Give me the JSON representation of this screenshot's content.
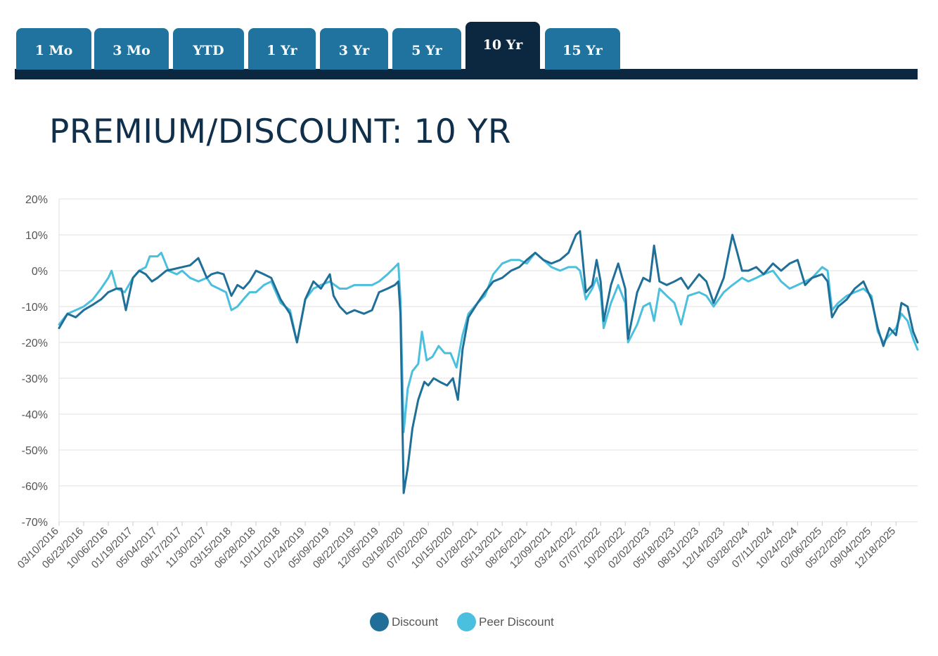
{
  "tabs": [
    {
      "label": "1 Mo",
      "active": false
    },
    {
      "label": "3 Mo",
      "active": false
    },
    {
      "label": "YTD",
      "active": false
    },
    {
      "label": "1 Yr",
      "active": false
    },
    {
      "label": "3 Yr",
      "active": false
    },
    {
      "label": "5 Yr",
      "active": false
    },
    {
      "label": "10 Yr",
      "active": true
    },
    {
      "label": "15 Yr",
      "active": false
    }
  ],
  "colors": {
    "tab": "#20739e",
    "tab_active": "#0c2840",
    "discount": "#1f6f98",
    "peer_discount": "#4bbfde",
    "grid": "#e2e2e2",
    "axis_text": "#555555"
  },
  "chart_data": {
    "type": "line",
    "title": "PREMIUM/DISCOUNT: 10 YR",
    "ylim": [
      -70,
      20
    ],
    "y_ticks": [
      "20%",
      "10%",
      "0%",
      "-10%",
      "-20%",
      "-30%",
      "-40%",
      "-50%",
      "-60%",
      "-70%"
    ],
    "x_ticks": [
      "03/10/2016",
      "06/23/2016",
      "10/06/2016",
      "01/19/2017",
      "05/04/2017",
      "08/17/2017",
      "11/30/2017",
      "03/15/2018",
      "06/28/2018",
      "10/11/2018",
      "01/24/2019",
      "05/09/2019",
      "08/22/2019",
      "12/05/2019",
      "03/19/2020",
      "07/02/2020",
      "10/15/2020",
      "01/28/2021",
      "05/13/2021",
      "08/26/2021",
      "12/09/2021",
      "03/24/2022",
      "07/07/2022",
      "10/20/2022",
      "02/02/2023",
      "05/18/2023",
      "08/31/2023",
      "12/14/2023",
      "03/28/2024",
      "07/11/2024",
      "10/24/2024",
      "02/06/2025",
      "05/22/2025",
      "09/04/2025",
      "12/18/2025"
    ],
    "x_end": "03/20/2026",
    "legend_position": "bottom-center",
    "grid": true,
    "series": [
      {
        "name": "Discount",
        "color": "#1f6f98",
        "points": [
          [
            "03/10/2016",
            -16
          ],
          [
            "04/15/2016",
            -12
          ],
          [
            "05/20/2016",
            -13
          ],
          [
            "06/23/2016",
            -11
          ],
          [
            "08/01/2016",
            -9.5
          ],
          [
            "09/05/2016",
            -8
          ],
          [
            "10/06/2016",
            -6
          ],
          [
            "11/10/2016",
            -5
          ],
          [
            "12/01/2016",
            -5
          ],
          [
            "12/20/2016",
            -11
          ],
          [
            "01/19/2017",
            -2
          ],
          [
            "02/15/2017",
            0
          ],
          [
            "03/15/2017",
            -1
          ],
          [
            "04/10/2017",
            -3
          ],
          [
            "05/04/2017",
            -2
          ],
          [
            "06/10/2017",
            0
          ],
          [
            "07/15/2017",
            0.5
          ],
          [
            "08/17/2017",
            1
          ],
          [
            "09/20/2017",
            1.5
          ],
          [
            "10/25/2017",
            3.5
          ],
          [
            "11/30/2017",
            -2
          ],
          [
            "12/20/2017",
            -1
          ],
          [
            "01/15/2018",
            -0.5
          ],
          [
            "02/10/2018",
            -1
          ],
          [
            "03/15/2018",
            -7
          ],
          [
            "04/10/2018",
            -4
          ],
          [
            "05/05/2018",
            -5
          ],
          [
            "06/01/2018",
            -3
          ],
          [
            "06/28/2018",
            0
          ],
          [
            "08/01/2018",
            -1
          ],
          [
            "09/01/2018",
            -2
          ],
          [
            "10/11/2018",
            -8
          ],
          [
            "11/20/2018",
            -12
          ],
          [
            "12/20/2018",
            -20
          ],
          [
            "01/24/2019",
            -8
          ],
          [
            "02/28/2019",
            -3
          ],
          [
            "04/01/2019",
            -5
          ],
          [
            "05/09/2019",
            -1
          ],
          [
            "05/25/2019",
            -7
          ],
          [
            "06/20/2019",
            -10
          ],
          [
            "07/20/2019",
            -12
          ],
          [
            "08/22/2019",
            -11
          ],
          [
            "10/01/2019",
            -12
          ],
          [
            "11/05/2019",
            -11
          ],
          [
            "12/05/2019",
            -6
          ],
          [
            "01/10/2020",
            -5
          ],
          [
            "02/10/2020",
            -4
          ],
          [
            "02/25/2020",
            -3
          ],
          [
            "03/05/2020",
            -12
          ],
          [
            "03/19/2020",
            -62
          ],
          [
            "04/05/2020",
            -55
          ],
          [
            "04/25/2020",
            -44
          ],
          [
            "05/20/2020",
            -36
          ],
          [
            "06/15/2020",
            -31
          ],
          [
            "07/02/2020",
            -32
          ],
          [
            "07/25/2020",
            -30
          ],
          [
            "08/20/2020",
            -31
          ],
          [
            "09/20/2020",
            -32
          ],
          [
            "10/15/2020",
            -30
          ],
          [
            "11/05/2020",
            -36
          ],
          [
            "11/25/2020",
            -22
          ],
          [
            "12/20/2020",
            -13
          ],
          [
            "01/28/2021",
            -9
          ],
          [
            "02/28/2021",
            -6
          ],
          [
            "04/05/2021",
            -3
          ],
          [
            "05/13/2021",
            -2
          ],
          [
            "06/20/2021",
            0
          ],
          [
            "07/25/2021",
            1
          ],
          [
            "08/26/2021",
            3
          ],
          [
            "10/01/2021",
            5
          ],
          [
            "11/05/2021",
            3
          ],
          [
            "12/09/2021",
            2
          ],
          [
            "01/15/2022",
            3
          ],
          [
            "02/20/2022",
            5
          ],
          [
            "03/24/2022",
            10
          ],
          [
            "04/10/2022",
            11
          ],
          [
            "05/05/2022",
            -6
          ],
          [
            "06/01/2022",
            -4
          ],
          [
            "06/20/2022",
            3
          ],
          [
            "07/07/2022",
            -3
          ],
          [
            "07/20/2022",
            -14
          ],
          [
            "08/20/2022",
            -4
          ],
          [
            "09/20/2022",
            2
          ],
          [
            "10/20/2022",
            -5
          ],
          [
            "11/01/2022",
            -19
          ],
          [
            "12/10/2022",
            -6
          ],
          [
            "01/05/2023",
            -2
          ],
          [
            "02/02/2023",
            -3
          ],
          [
            "02/20/2023",
            7
          ],
          [
            "03/15/2023",
            -3
          ],
          [
            "04/15/2023",
            -4
          ],
          [
            "05/18/2023",
            -3
          ],
          [
            "06/15/2023",
            -2
          ],
          [
            "07/15/2023",
            -5
          ],
          [
            "08/31/2023",
            -1
          ],
          [
            "10/01/2023",
            -3
          ],
          [
            "11/01/2023",
            -9
          ],
          [
            "12/14/2023",
            -2
          ],
          [
            "01/20/2024",
            10
          ],
          [
            "02/10/2024",
            5
          ],
          [
            "03/01/2024",
            0
          ],
          [
            "03/28/2024",
            0
          ],
          [
            "05/01/2024",
            1
          ],
          [
            "06/01/2024",
            -1
          ],
          [
            "07/11/2024",
            2
          ],
          [
            "08/15/2024",
            0
          ],
          [
            "09/20/2024",
            2
          ],
          [
            "10/24/2024",
            3
          ],
          [
            "11/25/2024",
            -4
          ],
          [
            "12/25/2024",
            -2
          ],
          [
            "02/06/2025",
            -1
          ],
          [
            "03/01/2025",
            -3
          ],
          [
            "03/20/2025",
            -13
          ],
          [
            "04/15/2025",
            -10
          ],
          [
            "05/22/2025",
            -8
          ],
          [
            "06/25/2025",
            -5
          ],
          [
            "08/01/2025",
            -3
          ],
          [
            "09/04/2025",
            -8
          ],
          [
            "10/01/2025",
            -16
          ],
          [
            "10/25/2025",
            -21
          ],
          [
            "11/20/2025",
            -16
          ],
          [
            "12/18/2025",
            -18
          ],
          [
            "01/10/2026",
            -9
          ],
          [
            "02/05/2026",
            -10
          ],
          [
            "03/01/2026",
            -17
          ],
          [
            "03/20/2026",
            -20
          ]
        ]
      },
      {
        "name": "Peer Discount",
        "color": "#4bbfde",
        "points": [
          [
            "03/10/2016",
            -15
          ],
          [
            "04/15/2016",
            -12
          ],
          [
            "05/20/2016",
            -11
          ],
          [
            "06/23/2016",
            -10
          ],
          [
            "08/01/2016",
            -8
          ],
          [
            "09/05/2016",
            -5
          ],
          [
            "10/06/2016",
            -2
          ],
          [
            "10/20/2016",
            0
          ],
          [
            "11/10/2016",
            -5
          ],
          [
            "12/15/2016",
            -6
          ],
          [
            "01/19/2017",
            -2
          ],
          [
            "02/15/2017",
            0
          ],
          [
            "03/15/2017",
            1
          ],
          [
            "04/01/2017",
            4
          ],
          [
            "05/04/2017",
            4
          ],
          [
            "05/20/2017",
            5
          ],
          [
            "06/20/2017",
            0
          ],
          [
            "07/25/2017",
            -1
          ],
          [
            "08/17/2017",
            0
          ],
          [
            "09/20/2017",
            -2
          ],
          [
            "10/25/2017",
            -3
          ],
          [
            "11/30/2017",
            -2
          ],
          [
            "12/20/2017",
            -4
          ],
          [
            "01/20/2018",
            -5
          ],
          [
            "02/20/2018",
            -6
          ],
          [
            "03/15/2018",
            -11
          ],
          [
            "04/10/2018",
            -10
          ],
          [
            "05/05/2018",
            -8
          ],
          [
            "06/01/2018",
            -6
          ],
          [
            "06/28/2018",
            -6
          ],
          [
            "08/01/2018",
            -4
          ],
          [
            "09/01/2018",
            -3
          ],
          [
            "10/11/2018",
            -9
          ],
          [
            "11/20/2018",
            -11
          ],
          [
            "12/20/2018",
            -20
          ],
          [
            "01/24/2019",
            -8
          ],
          [
            "02/28/2019",
            -5
          ],
          [
            "04/01/2019",
            -4
          ],
          [
            "05/09/2019",
            -3
          ],
          [
            "06/20/2019",
            -5
          ],
          [
            "07/20/2019",
            -5
          ],
          [
            "08/22/2019",
            -4
          ],
          [
            "10/01/2019",
            -4
          ],
          [
            "11/05/2019",
            -4
          ],
          [
            "12/05/2019",
            -3
          ],
          [
            "01/10/2020",
            -1
          ],
          [
            "02/10/2020",
            1
          ],
          [
            "02/25/2020",
            2
          ],
          [
            "03/05/2020",
            -8
          ],
          [
            "03/19/2020",
            -45
          ],
          [
            "04/05/2020",
            -33
          ],
          [
            "04/25/2020",
            -28
          ],
          [
            "05/20/2020",
            -26
          ],
          [
            "06/05/2020",
            -17
          ],
          [
            "06/25/2020",
            -25
          ],
          [
            "07/20/2020",
            -24
          ],
          [
            "08/15/2020",
            -21
          ],
          [
            "09/10/2020",
            -23
          ],
          [
            "10/05/2020",
            -23
          ],
          [
            "10/30/2020",
            -27
          ],
          [
            "11/25/2020",
            -18
          ],
          [
            "12/20/2020",
            -12
          ],
          [
            "01/28/2021",
            -9
          ],
          [
            "02/28/2021",
            -7
          ],
          [
            "04/05/2021",
            -1
          ],
          [
            "05/13/2021",
            2
          ],
          [
            "06/20/2021",
            3
          ],
          [
            "07/25/2021",
            3
          ],
          [
            "08/26/2021",
            2
          ],
          [
            "10/01/2021",
            5
          ],
          [
            "11/05/2021",
            3
          ],
          [
            "12/09/2021",
            1
          ],
          [
            "01/15/2022",
            0
          ],
          [
            "02/20/2022",
            1
          ],
          [
            "03/24/2022",
            1
          ],
          [
            "04/10/2022",
            0
          ],
          [
            "05/05/2022",
            -8
          ],
          [
            "06/01/2022",
            -5
          ],
          [
            "06/20/2022",
            -2
          ],
          [
            "07/07/2022",
            -6
          ],
          [
            "07/20/2022",
            -16
          ],
          [
            "08/20/2022",
            -9
          ],
          [
            "09/20/2022",
            -4
          ],
          [
            "10/20/2022",
            -9
          ],
          [
            "11/01/2022",
            -20
          ],
          [
            "12/10/2022",
            -15
          ],
          [
            "01/05/2023",
            -10
          ],
          [
            "02/02/2023",
            -9
          ],
          [
            "02/20/2023",
            -14
          ],
          [
            "03/15/2023",
            -5
          ],
          [
            "04/15/2023",
            -7
          ],
          [
            "05/18/2023",
            -9
          ],
          [
            "06/15/2023",
            -15
          ],
          [
            "07/15/2023",
            -7
          ],
          [
            "08/31/2023",
            -6
          ],
          [
            "10/01/2023",
            -7
          ],
          [
            "11/01/2023",
            -10
          ],
          [
            "12/14/2023",
            -6
          ],
          [
            "01/20/2024",
            -4
          ],
          [
            "02/10/2024",
            -3
          ],
          [
            "03/01/2024",
            -2
          ],
          [
            "03/28/2024",
            -3
          ],
          [
            "05/01/2024",
            -2
          ],
          [
            "06/01/2024",
            -1
          ],
          [
            "07/11/2024",
            0
          ],
          [
            "08/15/2024",
            -3
          ],
          [
            "09/20/2024",
            -5
          ],
          [
            "10/24/2024",
            -4
          ],
          [
            "11/25/2024",
            -3
          ],
          [
            "12/25/2024",
            -2
          ],
          [
            "02/06/2025",
            1
          ],
          [
            "03/01/2025",
            0
          ],
          [
            "03/20/2025",
            -11
          ],
          [
            "04/15/2025",
            -9
          ],
          [
            "05/22/2025",
            -7
          ],
          [
            "06/25/2025",
            -6
          ],
          [
            "08/01/2025",
            -5
          ],
          [
            "09/04/2025",
            -7
          ],
          [
            "10/01/2025",
            -17
          ],
          [
            "10/25/2025",
            -20
          ],
          [
            "11/20/2025",
            -18
          ],
          [
            "12/18/2025",
            -16
          ],
          [
            "01/10/2026",
            -12
          ],
          [
            "02/05/2026",
            -14
          ],
          [
            "03/01/2026",
            -19
          ],
          [
            "03/20/2026",
            -22
          ]
        ]
      }
    ]
  }
}
